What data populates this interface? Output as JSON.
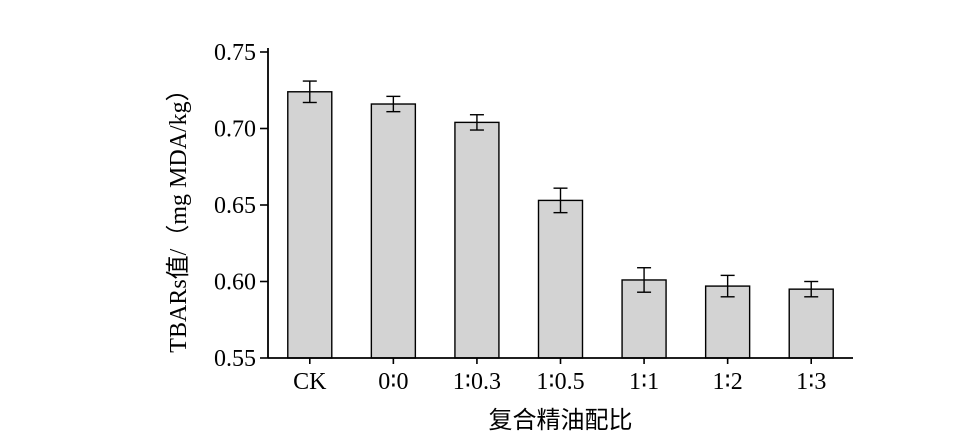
{
  "chart_data": {
    "type": "bar",
    "categories": [
      "CK",
      "0∶0",
      "1∶0.3",
      "1∶0.5",
      "1∶1",
      "1∶2",
      "1∶3"
    ],
    "values": [
      0.724,
      0.716,
      0.704,
      0.653,
      0.601,
      0.597,
      0.595
    ],
    "error": [
      0.007,
      0.005,
      0.005,
      0.008,
      0.008,
      0.007,
      0.005
    ],
    "xlabel": "复合精油配比",
    "ylabel": "TBARs值/（mg MDA/kg）",
    "ylim": [
      0.55,
      0.75
    ],
    "yticks": [
      "0.55",
      "0.60",
      "0.65",
      "0.70",
      "0.75"
    ],
    "grid": false,
    "colors": {
      "bar_fill": "#d3d3d3",
      "bar_stroke": "#000000",
      "axis": "#000000"
    }
  }
}
